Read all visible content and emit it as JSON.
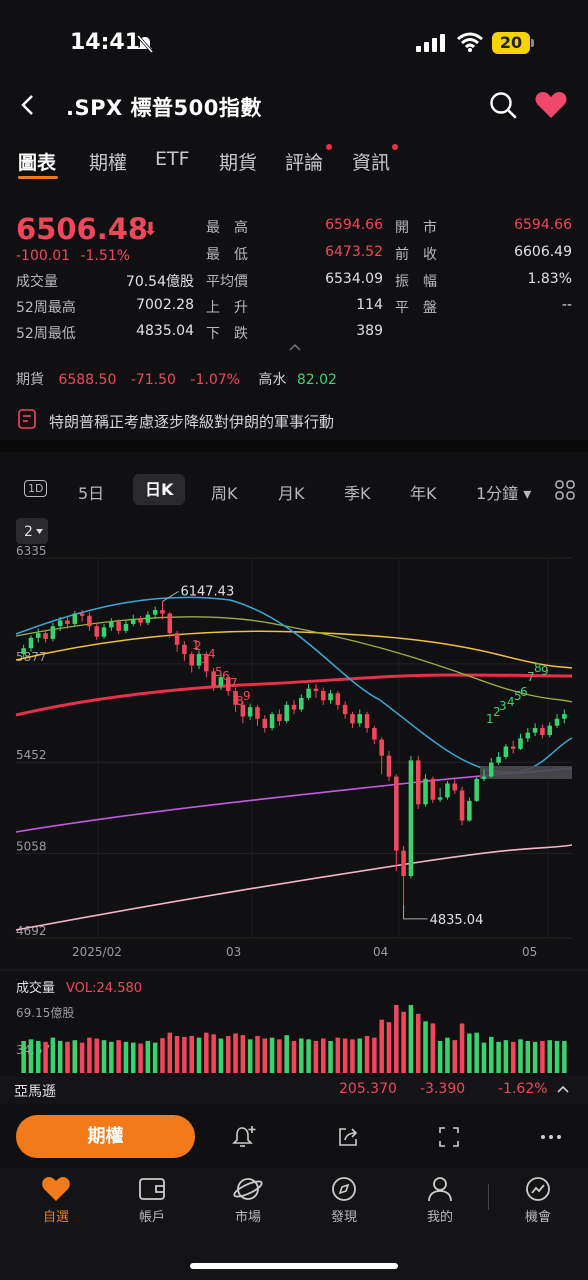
{
  "status": {
    "time": "14:41",
    "battery": "20"
  },
  "header": {
    "title": ".SPX  標普500指數"
  },
  "tabs": [
    {
      "label": "圖表",
      "active": true
    },
    {
      "label": "期權"
    },
    {
      "label": "ETF"
    },
    {
      "label": "期貨"
    },
    {
      "label": "評論",
      "dot": true
    },
    {
      "label": "資訊",
      "dot": true
    }
  ],
  "quote": {
    "price": "6506.48",
    "change": "-100.01",
    "change_pct": "-1.51%",
    "stats": {
      "high_label": "最　高",
      "high": "6594.66",
      "open_label": "開　市",
      "open": "6594.66",
      "low_label": "最　低",
      "low": "6473.52",
      "prev_close_label": "前　收",
      "prev_close": "6606.49",
      "volume_label": "成交量",
      "volume": "70.54億股",
      "avg_label": "平均價",
      "avg": "6534.09",
      "amp_label": "振　幅",
      "amp": "1.83%",
      "high52_label": "52周最高",
      "high52": "7002.28",
      "up_label": "上　升",
      "up": "114",
      "flat_label": "平　盤",
      "flat": "--",
      "low52_label": "52周最低",
      "low52": "4835.04",
      "down_label": "下　跌",
      "down": "389"
    }
  },
  "futures": {
    "label": "期貨",
    "price": "6588.50",
    "change": "-71.50",
    "pct": "-1.07%",
    "tide_label": "高水",
    "tide": "82.02"
  },
  "news": {
    "headline": "特朗普稱正考慮逐步降級對伊朗的軍事行動"
  },
  "periods": [
    {
      "label": "1D",
      "boxed": true
    },
    {
      "label": "5日"
    },
    {
      "label": "日K",
      "active": true
    },
    {
      "label": "周K"
    },
    {
      "label": "月K"
    },
    {
      "label": "季K"
    },
    {
      "label": "年K"
    },
    {
      "label": "1分鐘 ▾"
    }
  ],
  "chart_badge": "2",
  "chart_data": {
    "type": "candlestick",
    "y_ticks": [
      "6335",
      "5877",
      "5452",
      "5058",
      "4692"
    ],
    "y_tick_values": [
      6335,
      5877,
      5452,
      5058,
      4692
    ],
    "ylim": [
      4692,
      6335
    ],
    "x_ticks": [
      "2025/02",
      "03",
      "04",
      "05"
    ],
    "annotations": {
      "high": "6147.43",
      "low": "4835.04"
    },
    "td_counts_down": [
      "1",
      "2",
      "3",
      "4",
      "5",
      "6",
      "7",
      "8",
      "9"
    ],
    "td_counts_up": [
      "1",
      "2",
      "3",
      "4",
      "5",
      "6",
      "7",
      "8",
      "9"
    ],
    "candles": [
      [
        5920,
        5945,
        5900,
        5960
      ],
      [
        5945,
        5990,
        5930,
        6000
      ],
      [
        5990,
        6010,
        5970,
        6030
      ],
      [
        6010,
        5985,
        5970,
        6025
      ],
      [
        5985,
        6040,
        5975,
        6055
      ],
      [
        6040,
        6065,
        6020,
        6080
      ],
      [
        6065,
        6050,
        6030,
        6085
      ],
      [
        6050,
        6095,
        6040,
        6105
      ],
      [
        6095,
        6085,
        6060,
        6110
      ],
      [
        6085,
        6040,
        6020,
        6100
      ],
      [
        6040,
        5995,
        5980,
        6055
      ],
      [
        5995,
        6035,
        5985,
        6050
      ],
      [
        6035,
        6060,
        6020,
        6075
      ],
      [
        6060,
        6020,
        6005,
        6070
      ],
      [
        6020,
        6050,
        6010,
        6065
      ],
      [
        6050,
        6070,
        6040,
        6090
      ],
      [
        6070,
        6055,
        6040,
        6085
      ],
      [
        6055,
        6090,
        6045,
        6105
      ],
      [
        6090,
        6110,
        6075,
        6125
      ],
      [
        6110,
        6095,
        6070,
        6147
      ],
      [
        6095,
        6010,
        5990,
        6100
      ],
      [
        6010,
        5960,
        5930,
        6020
      ],
      [
        5960,
        5920,
        5890,
        5975
      ],
      [
        5920,
        5870,
        5840,
        5930
      ],
      [
        5870,
        5920,
        5855,
        5935
      ],
      [
        5920,
        5845,
        5820,
        5930
      ],
      [
        5845,
        5780,
        5760,
        5860
      ],
      [
        5780,
        5820,
        5765,
        5840
      ],
      [
        5820,
        5760,
        5740,
        5830
      ],
      [
        5760,
        5700,
        5670,
        5775
      ],
      [
        5700,
        5650,
        5620,
        5715
      ],
      [
        5650,
        5690,
        5635,
        5705
      ],
      [
        5690,
        5640,
        5610,
        5700
      ],
      [
        5640,
        5600,
        5580,
        5655
      ],
      [
        5600,
        5660,
        5590,
        5670
      ],
      [
        5660,
        5630,
        5610,
        5680
      ],
      [
        5630,
        5700,
        5620,
        5715
      ],
      [
        5700,
        5680,
        5660,
        5720
      ],
      [
        5680,
        5730,
        5670,
        5745
      ],
      [
        5730,
        5770,
        5720,
        5790
      ],
      [
        5770,
        5760,
        5730,
        5790
      ],
      [
        5760,
        5720,
        5700,
        5775
      ],
      [
        5720,
        5750,
        5705,
        5765
      ],
      [
        5750,
        5700,
        5680,
        5760
      ],
      [
        5700,
        5660,
        5640,
        5715
      ],
      [
        5660,
        5620,
        5600,
        5670
      ],
      [
        5620,
        5660,
        5605,
        5680
      ],
      [
        5660,
        5600,
        5580,
        5670
      ],
      [
        5600,
        5550,
        5530,
        5610
      ],
      [
        5550,
        5480,
        5400,
        5560
      ],
      [
        5480,
        5390,
        5370,
        5500
      ],
      [
        5390,
        5070,
        4982,
        5400
      ],
      [
        5070,
        4960,
        4835,
        5090
      ],
      [
        4960,
        5460,
        4950,
        5480
      ],
      [
        5460,
        5270,
        5250,
        5480
      ],
      [
        5270,
        5380,
        5260,
        5400
      ],
      [
        5380,
        5290,
        5275,
        5390
      ],
      [
        5290,
        5300,
        5280,
        5340
      ],
      [
        5300,
        5360,
        5290,
        5370
      ],
      [
        5360,
        5330,
        5315,
        5380
      ],
      [
        5330,
        5200,
        5180,
        5345
      ],
      [
        5200,
        5285,
        5195,
        5300
      ],
      [
        5285,
        5380,
        5280,
        5390
      ],
      [
        5380,
        5390,
        5370,
        5420
      ],
      [
        5390,
        5450,
        5385,
        5470
      ],
      [
        5450,
        5475,
        5440,
        5495
      ],
      [
        5475,
        5520,
        5465,
        5530
      ],
      [
        5520,
        5510,
        5490,
        5545
      ],
      [
        5510,
        5555,
        5505,
        5575
      ],
      [
        5555,
        5580,
        5540,
        5600
      ],
      [
        5580,
        5600,
        5565,
        5620
      ],
      [
        5600,
        5570,
        5555,
        5615
      ],
      [
        5570,
        5610,
        5560,
        5625
      ],
      [
        5610,
        5640,
        5600,
        5660
      ],
      [
        5640,
        5660,
        5620,
        5680
      ]
    ],
    "volume": {
      "label": "成交量",
      "vol_label": "VOL:24.580",
      "y_ticks": [
        "69.15億股",
        "34.57"
      ]
    }
  },
  "ticker_row": {
    "name": "亞馬遜",
    "price": "205.370",
    "change": "-3.390",
    "pct": "-1.62%"
  },
  "action_bar": {
    "primary_label": "期權"
  },
  "bottom_nav": [
    {
      "label": "自選",
      "icon": "heart-icon",
      "active": true
    },
    {
      "label": "帳戶",
      "icon": "wallet-icon"
    },
    {
      "label": "市場",
      "icon": "planet-icon"
    },
    {
      "label": "發現",
      "icon": "compass-icon"
    },
    {
      "label": "我的",
      "icon": "person-icon"
    },
    {
      "label": "機會",
      "icon": "trend-icon"
    }
  ],
  "colors": {
    "up": "#3ad26e",
    "down": "#f0485a",
    "accent": "#f27a1a",
    "bg": "#101012"
  }
}
